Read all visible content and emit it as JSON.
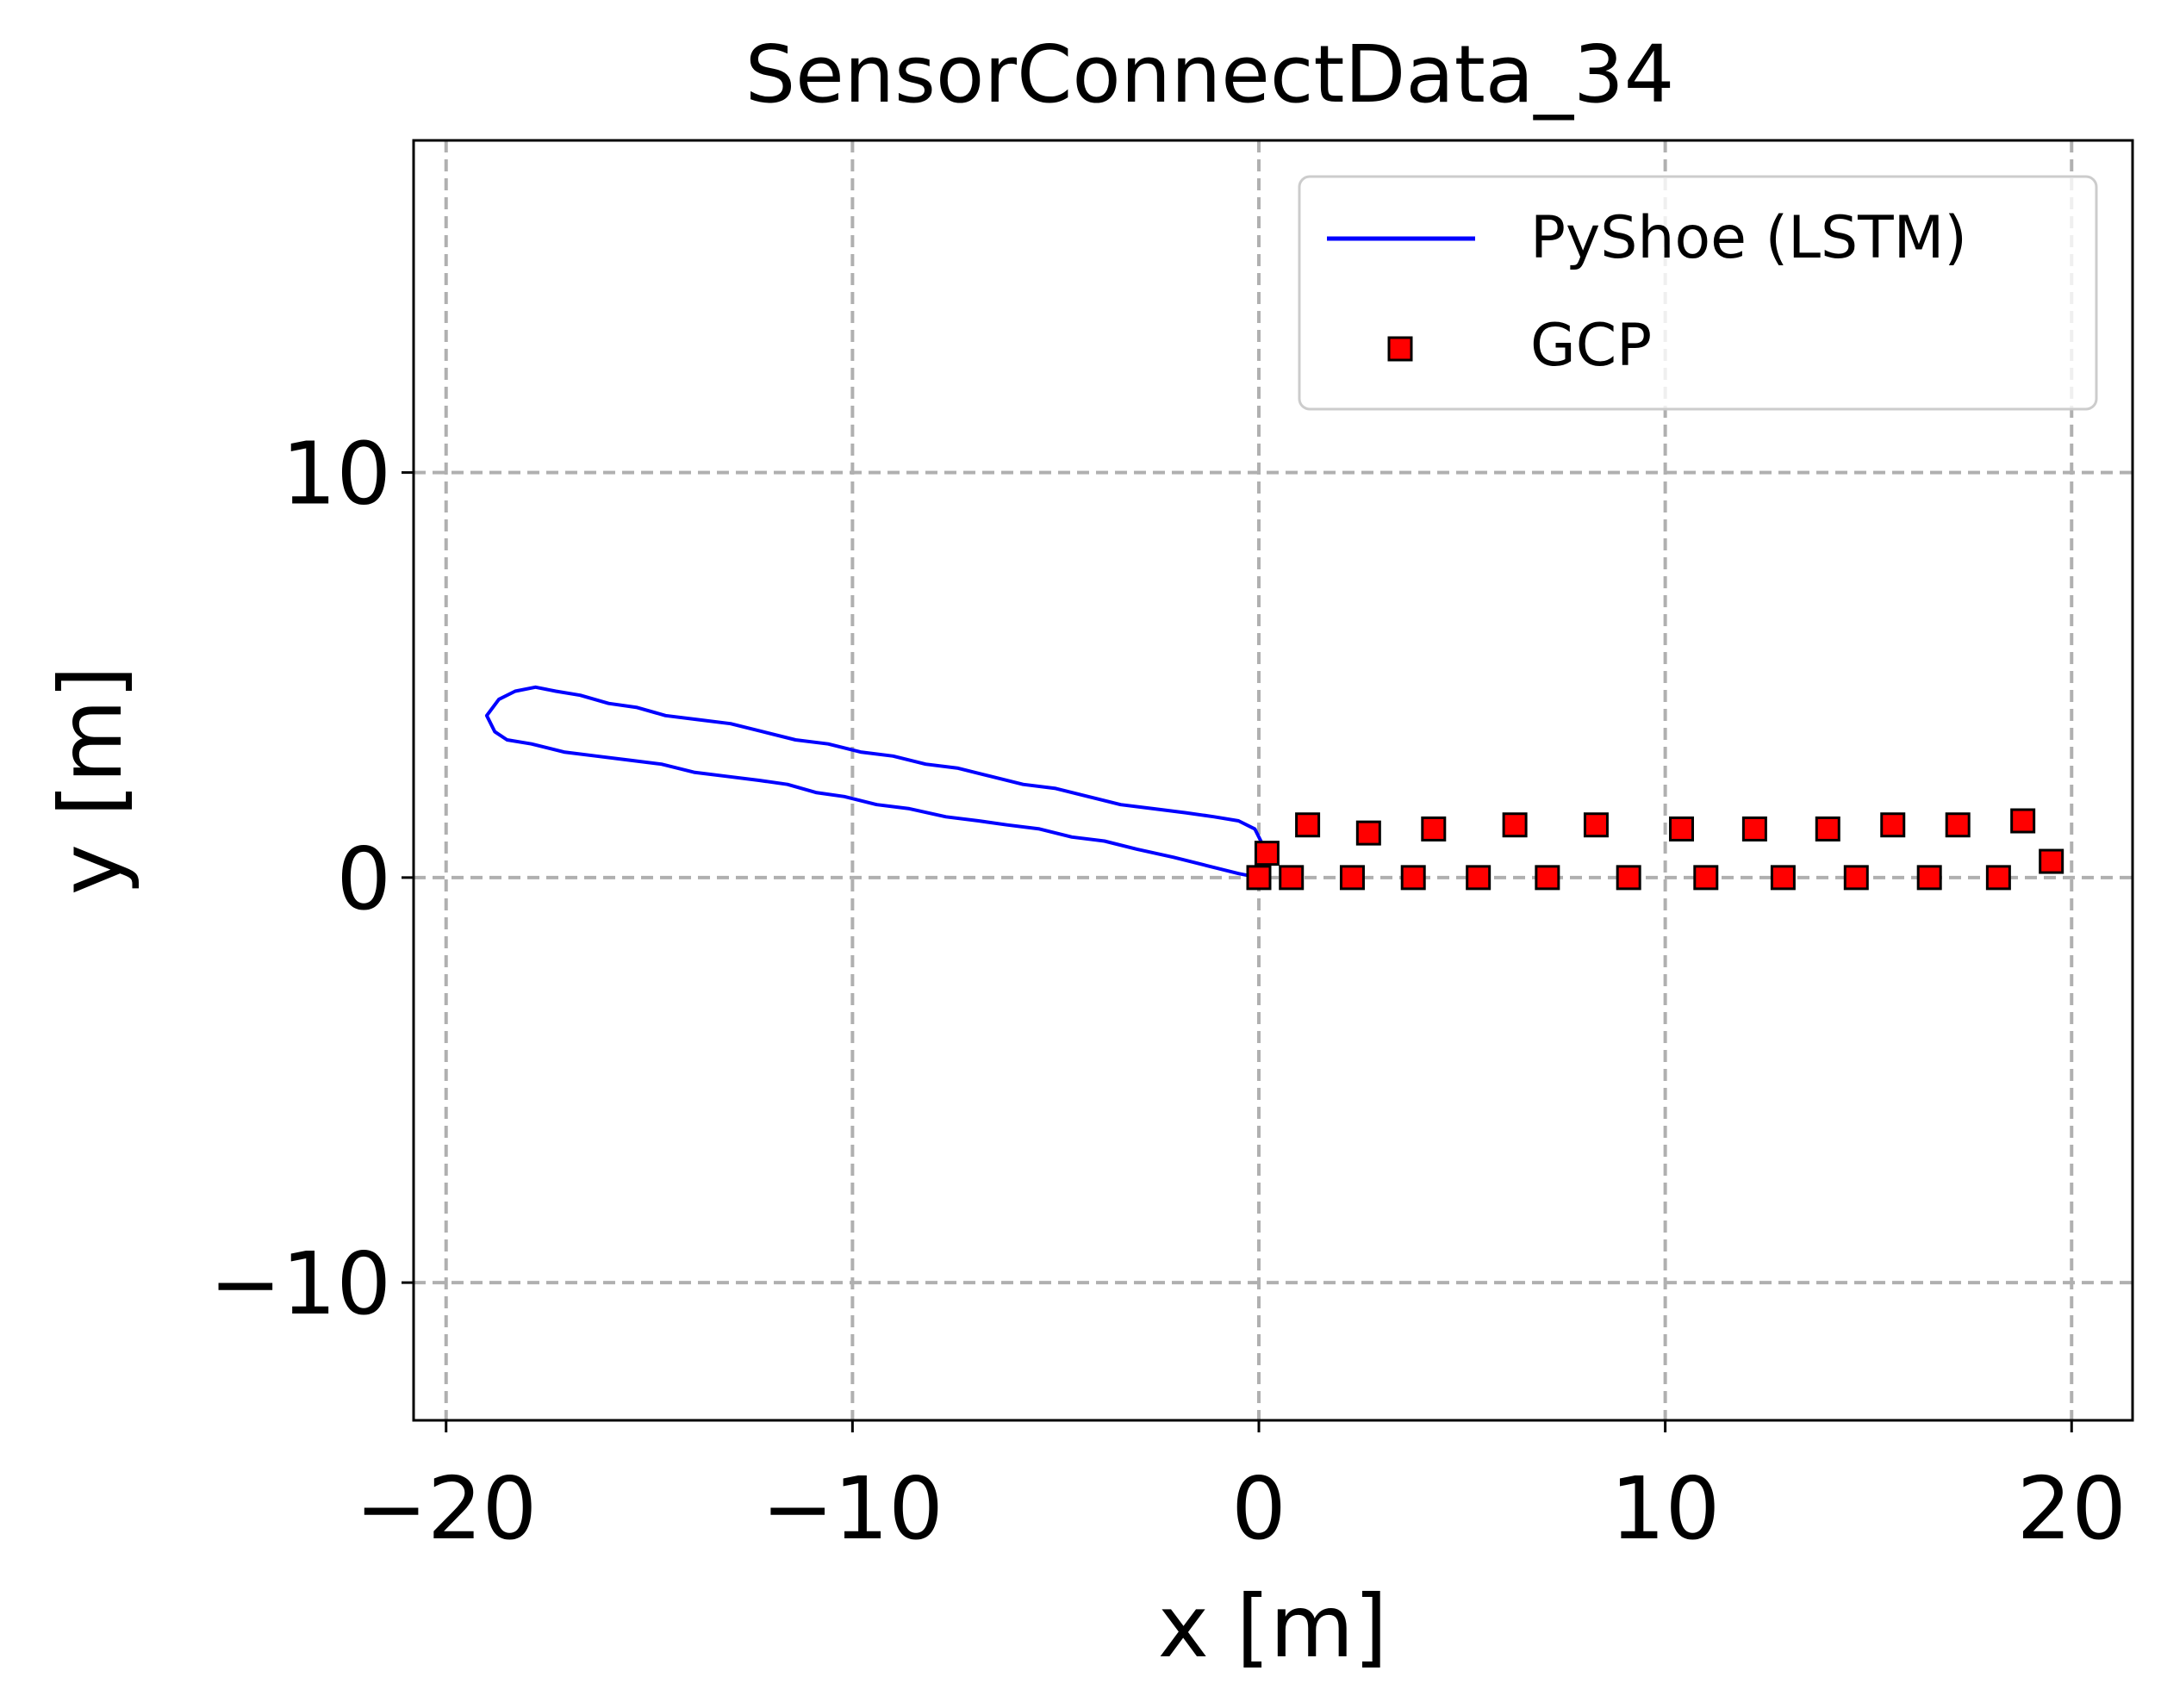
{
  "chart_data": {
    "type": "line",
    "title": "SensorConnectData_34",
    "xlabel": "x [m]",
    "ylabel": "y [m]",
    "xlim": [
      -20.8,
      21.5
    ],
    "ylim": [
      -13.4,
      18.2
    ],
    "xticks": [
      -20,
      -10,
      0,
      10,
      20
    ],
    "yticks": [
      -10,
      0,
      10
    ],
    "xtick_labels": [
      "−20",
      "−10",
      "0",
      "10",
      "20"
    ],
    "ytick_labels": [
      "−10",
      "0",
      "10"
    ],
    "grid": true,
    "legend_position": "top-right",
    "series": [
      {
        "name": "PyShoe (LSTM)",
        "type": "line",
        "color": "#0000ff",
        "x": [
          0.0,
          -0.5,
          -1.3,
          -2.1,
          -3.0,
          -3.8,
          -4.6,
          -5.4,
          -6.2,
          -6.9,
          -7.7,
          -8.6,
          -9.4,
          -10.2,
          -10.9,
          -11.6,
          -12.3,
          -13.1,
          -13.9,
          -14.7,
          -15.5,
          -16.3,
          -17.1,
          -17.9,
          -18.5,
          -18.8,
          -19.0,
          -18.7,
          -18.3,
          -17.8,
          -17.3,
          -16.7,
          -16.0,
          -15.3,
          -14.6,
          -13.8,
          -13.0,
          -12.2,
          -11.4,
          -10.6,
          -9.8,
          -9.0,
          -8.2,
          -7.4,
          -6.6,
          -5.8,
          -5.0,
          -4.2,
          -3.4,
          -2.6,
          -1.8,
          -1.1,
          -0.5,
          -0.1,
          0.1,
          0.2,
          0.0
        ],
        "y": [
          0.0,
          0.1,
          0.3,
          0.5,
          0.7,
          0.9,
          1.0,
          1.2,
          1.3,
          1.4,
          1.5,
          1.7,
          1.8,
          2.0,
          2.1,
          2.3,
          2.4,
          2.5,
          2.6,
          2.8,
          2.9,
          3.0,
          3.1,
          3.3,
          3.4,
          3.6,
          4.0,
          4.4,
          4.6,
          4.7,
          4.6,
          4.5,
          4.3,
          4.2,
          4.0,
          3.9,
          3.8,
          3.6,
          3.4,
          3.3,
          3.1,
          3.0,
          2.8,
          2.7,
          2.5,
          2.3,
          2.2,
          2.0,
          1.8,
          1.7,
          1.6,
          1.5,
          1.4,
          1.2,
          0.8,
          0.4,
          0.0
        ]
      },
      {
        "name": "GCP",
        "type": "scatter",
        "marker": "square",
        "color": "#ff0000",
        "edgecolor": "#000000",
        "x": [
          0.0,
          0.2,
          1.2,
          2.7,
          4.3,
          6.3,
          8.3,
          10.4,
          12.2,
          14.0,
          15.6,
          17.2,
          18.8,
          19.5,
          0.8,
          2.3,
          3.8,
          5.4,
          7.1,
          9.1,
          11.0,
          12.9,
          14.7,
          16.5,
          18.2
        ],
        "y": [
          0.0,
          0.6,
          1.3,
          1.1,
          1.2,
          1.3,
          1.3,
          1.2,
          1.2,
          1.2,
          1.3,
          1.3,
          1.4,
          0.4,
          0.0,
          0.0,
          0.0,
          0.0,
          0.0,
          0.0,
          0.0,
          0.0,
          0.0,
          0.0,
          0.0
        ]
      }
    ]
  }
}
